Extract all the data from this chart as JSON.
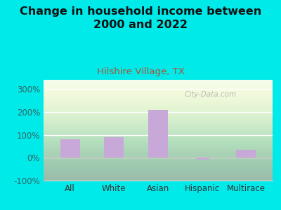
{
  "title": "Change in household income between\n2000 and 2022",
  "subtitle": "Hilshire Village, TX",
  "categories": [
    "All",
    "White",
    "Asian",
    "Hispanic",
    "Multirace"
  ],
  "values": [
    80,
    90,
    210,
    -3,
    35
  ],
  "bar_color": "#c8a8d8",
  "title_fontsize": 11.5,
  "subtitle_fontsize": 9.5,
  "subtitle_color": "#b05030",
  "ytick_color": "#336666",
  "xtick_color": "#333333",
  "background_outer": "#00eaea",
  "ylim": [
    -100,
    340
  ],
  "yticks": [
    -100,
    0,
    100,
    200,
    300
  ],
  "watermark": "City-Data.com",
  "bar_width": 0.45
}
